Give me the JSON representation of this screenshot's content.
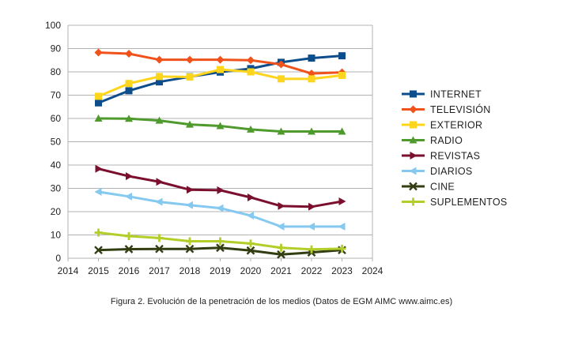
{
  "caption": "Figura 2. Evolución de la penetración de los medios (Datos de EGM AIMC www.aimc.es)",
  "chart_data": {
    "type": "line",
    "title": "",
    "xlabel": "",
    "ylabel": "",
    "xlim": [
      2014,
      2024
    ],
    "ylim": [
      0,
      100
    ],
    "x_ticks": [
      2014,
      2015,
      2016,
      2017,
      2018,
      2019,
      2020,
      2021,
      2022,
      2023,
      2024
    ],
    "y_ticks": [
      0,
      10,
      20,
      30,
      40,
      50,
      60,
      70,
      80,
      90,
      100
    ],
    "grid": "horizontal",
    "legend": "right",
    "x": [
      2015,
      2016,
      2017,
      2018,
      2019,
      2020,
      2021,
      2022,
      2023
    ],
    "series": [
      {
        "name": "INTERNET",
        "color": "#0e4d8c",
        "marker": "square",
        "values": [
          66.7,
          71.9,
          75.7,
          77.9,
          79.9,
          81.4,
          84.1,
          85.9,
          86.9
        ]
      },
      {
        "name": "TELEVISIÓN",
        "color": "#f0521c",
        "marker": "diamond",
        "values": [
          88.3,
          87.8,
          85.2,
          85.2,
          85.2,
          85.0,
          83.2,
          79.3,
          79.8
        ]
      },
      {
        "name": "EXTERIOR",
        "color": "#fdd51d",
        "marker": "square",
        "values": [
          69.5,
          75.0,
          78.0,
          77.8,
          81.0,
          80.0,
          77.0,
          77.0,
          78.5
        ]
      },
      {
        "name": "RADIO",
        "color": "#4f9a2d",
        "marker": "triangle-up",
        "values": [
          60.0,
          59.9,
          59.1,
          57.4,
          56.8,
          55.3,
          54.4,
          54.4,
          54.4
        ]
      },
      {
        "name": "REVISTAS",
        "color": "#7a0f2e",
        "marker": "triangle-right",
        "values": [
          38.4,
          35.2,
          32.8,
          29.4,
          29.2,
          26.1,
          22.4,
          22.1,
          24.4
        ]
      },
      {
        "name": "DIARIOS",
        "color": "#85c9f0",
        "marker": "triangle-left",
        "values": [
          28.5,
          26.5,
          24.2,
          22.8,
          21.5,
          18.3,
          13.6,
          13.6,
          13.6
        ]
      },
      {
        "name": "CINE",
        "color": "#333d12",
        "marker": "x",
        "values": [
          3.5,
          3.9,
          4.0,
          4.0,
          4.5,
          3.3,
          1.6,
          2.5,
          3.5
        ]
      },
      {
        "name": "SUPLEMENTOS",
        "color": "#b3ce29",
        "marker": "cross",
        "values": [
          11.0,
          9.5,
          8.7,
          7.3,
          7.3,
          6.3,
          4.5,
          3.8,
          4.1
        ]
      }
    ]
  }
}
